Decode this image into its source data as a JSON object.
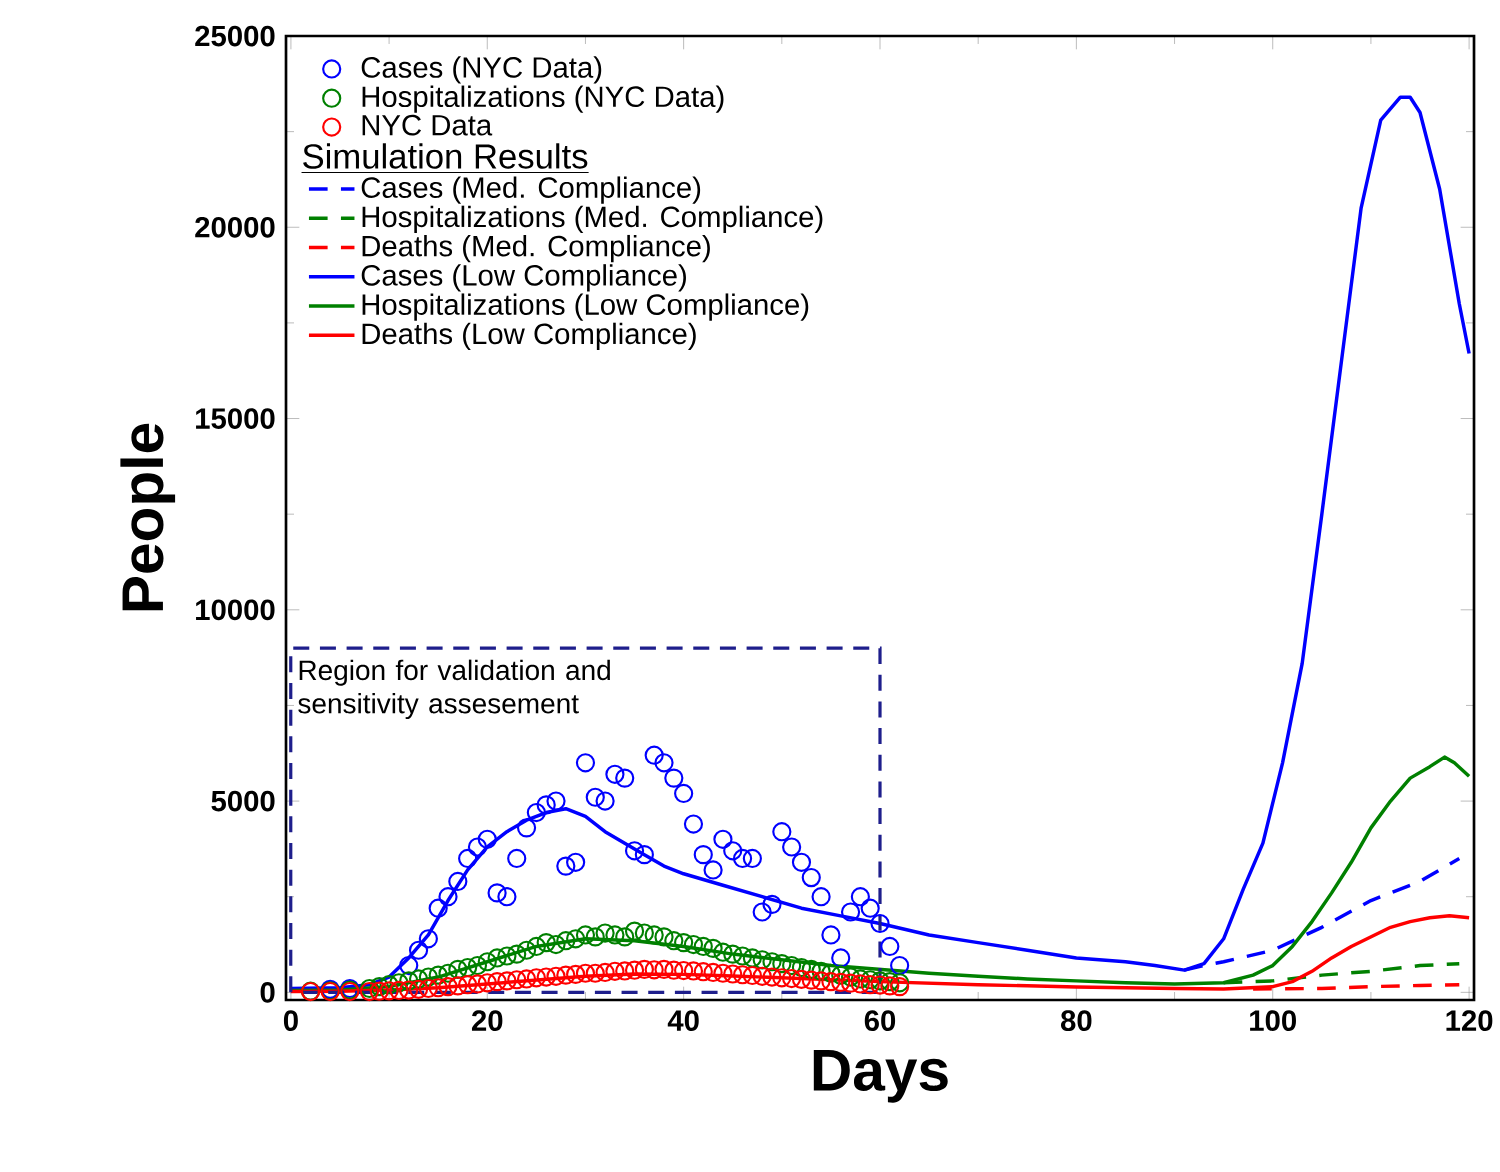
{
  "chart_data": {
    "type": "line",
    "xlabel": "Days",
    "ylabel": "People",
    "legend_title": "Simulation Results",
    "xlim": [
      -0.5,
      120.5
    ],
    "ylim": [
      -200,
      25000
    ],
    "xticks": [
      0,
      20,
      40,
      60,
      80,
      100,
      120
    ],
    "yticks": [
      0,
      5000,
      10000,
      15000,
      20000,
      25000
    ],
    "legend": "top left",
    "grid": false,
    "annotations": [
      "Region for validation and sensitivity assesement"
    ],
    "series": [
      {
        "name": "Cases (NYC Data)",
        "type": "scatter",
        "marker": "circle",
        "color": "#0000ff",
        "x": [
          4,
          6,
          12,
          13,
          14,
          15,
          16,
          17,
          18,
          19,
          20,
          21,
          22,
          23,
          24,
          25,
          26,
          27,
          28,
          29,
          30,
          31,
          32,
          33,
          34,
          35,
          36,
          37,
          38,
          39,
          40,
          41,
          42,
          43,
          44,
          45,
          46,
          47,
          48,
          49,
          50,
          51,
          52,
          53,
          54,
          55,
          56,
          57,
          58,
          59,
          60,
          61,
          62
        ],
        "values": [
          80,
          100,
          700,
          1100,
          1400,
          2200,
          2500,
          2900,
          3500,
          3800,
          4000,
          2600,
          2500,
          3500,
          4300,
          4700,
          4900,
          5000,
          3300,
          3400,
          6000,
          5100,
          5000,
          5700,
          5600,
          3700,
          3600,
          6200,
          6000,
          5600,
          5200,
          4400,
          3600,
          3200,
          4000,
          3700,
          3500,
          3500,
          2100,
          2300,
          4200,
          3800,
          3400,
          3000,
          2500,
          1500,
          900,
          2100,
          2500,
          2200,
          1800,
          1200,
          700
        ]
      },
      {
        "name": "Hospitalizations (NYC Data)",
        "type": "scatter",
        "marker": "circle",
        "color": "#008000",
        "x": [
          2,
          4,
          6,
          8,
          9,
          10,
          11,
          12,
          13,
          14,
          15,
          16,
          17,
          18,
          19,
          20,
          21,
          22,
          23,
          24,
          25,
          26,
          27,
          28,
          29,
          30,
          31,
          32,
          33,
          34,
          35,
          36,
          37,
          38,
          39,
          40,
          41,
          42,
          43,
          44,
          45,
          46,
          47,
          48,
          49,
          50,
          51,
          52,
          53,
          54,
          55,
          56,
          57,
          58,
          59,
          60,
          61,
          62
        ],
        "values": [
          30,
          40,
          60,
          100,
          150,
          200,
          250,
          300,
          350,
          400,
          450,
          500,
          600,
          650,
          700,
          800,
          900,
          950,
          1000,
          1100,
          1200,
          1300,
          1250,
          1350,
          1400,
          1500,
          1450,
          1550,
          1500,
          1450,
          1600,
          1550,
          1500,
          1450,
          1350,
          1300,
          1250,
          1200,
          1150,
          1050,
          1000,
          950,
          900,
          850,
          800,
          750,
          700,
          650,
          600,
          550,
          500,
          450,
          400,
          350,
          330,
          300,
          280,
          250
        ]
      },
      {
        "name": "NYC Data",
        "type": "scatter",
        "marker": "circle",
        "color": "#ff0000",
        "x": [
          2,
          4,
          6,
          8,
          9,
          10,
          11,
          12,
          13,
          14,
          15,
          16,
          17,
          18,
          19,
          20,
          21,
          22,
          23,
          24,
          25,
          26,
          27,
          28,
          29,
          30,
          31,
          32,
          33,
          34,
          35,
          36,
          37,
          38,
          39,
          40,
          41,
          42,
          43,
          44,
          45,
          46,
          47,
          48,
          49,
          50,
          51,
          52,
          53,
          54,
          55,
          56,
          57,
          58,
          59,
          60,
          61,
          62
        ],
        "values": [
          20,
          20,
          20,
          20,
          30,
          40,
          50,
          60,
          80,
          100,
          120,
          150,
          170,
          200,
          220,
          250,
          280,
          300,
          330,
          350,
          380,
          400,
          420,
          450,
          470,
          500,
          500,
          520,
          550,
          560,
          580,
          600,
          590,
          600,
          580,
          570,
          560,
          540,
          520,
          500,
          480,
          460,
          440,
          420,
          400,
          380,
          360,
          340,
          320,
          300,
          280,
          260,
          240,
          220,
          200,
          190,
          170,
          150
        ]
      },
      {
        "name": "Cases (Med. Compliance)",
        "line_style": "dashed",
        "color": "#0000ff",
        "x": [
          91,
          93,
          95,
          100,
          105,
          110,
          115,
          119
        ],
        "values": [
          580,
          700,
          800,
          1100,
          1700,
          2400,
          2900,
          3500
        ]
      },
      {
        "name": "Hospitalizations (Med. Compliance)",
        "line_style": "dashed",
        "color": "#008000",
        "x": [
          95,
          100,
          105,
          110,
          115,
          119
        ],
        "values": [
          250,
          300,
          450,
          550,
          700,
          750
        ]
      },
      {
        "name": "Deaths (Med. Compliance)",
        "line_style": "dashed",
        "color": "#ff0000",
        "x": [
          98,
          105,
          110,
          115,
          119
        ],
        "values": [
          90,
          100,
          150,
          180,
          200
        ]
      },
      {
        "name": "Cases (Low Compliance)",
        "line_style": "solid",
        "color": "#0000ff",
        "x": [
          0,
          5,
          8,
          10,
          12,
          14,
          16,
          18,
          20,
          22,
          24,
          26,
          28,
          30,
          32,
          34,
          36,
          38,
          40,
          44,
          48,
          52,
          56,
          60,
          65,
          70,
          75,
          80,
          85,
          88,
          91,
          93,
          95,
          97,
          99,
          101,
          103,
          105,
          107,
          109,
          111,
          113,
          114,
          115,
          117,
          119,
          120
        ],
        "values": [
          100,
          120,
          200,
          400,
          900,
          1500,
          2400,
          3200,
          3800,
          4200,
          4500,
          4700,
          4800,
          4600,
          4200,
          3900,
          3600,
          3300,
          3100,
          2800,
          2500,
          2200,
          2000,
          1800,
          1500,
          1300,
          1100,
          900,
          800,
          700,
          580,
          750,
          1400,
          2700,
          3900,
          6000,
          8600,
          12500,
          16500,
          20500,
          22800,
          23400,
          23400,
          23000,
          21000,
          18000,
          16700
        ]
      },
      {
        "name": "Hospitalizations (Low Compliance)",
        "line_style": "solid",
        "color": "#008000",
        "x": [
          0,
          5,
          10,
          15,
          20,
          25,
          30,
          35,
          40,
          45,
          50,
          55,
          60,
          65,
          70,
          75,
          80,
          85,
          90,
          95,
          98,
          100,
          102,
          104,
          106,
          108,
          110,
          112,
          114,
          116,
          117.5,
          118.5,
          120
        ],
        "values": [
          50,
          60,
          150,
          400,
          800,
          1200,
          1400,
          1350,
          1200,
          1000,
          850,
          700,
          600,
          500,
          420,
          350,
          300,
          250,
          220,
          250,
          450,
          700,
          1200,
          1850,
          2600,
          3400,
          4300,
          5000,
          5600,
          5900,
          6150,
          6000,
          5650
        ]
      },
      {
        "name": "Deaths (Low Compliance)",
        "line_style": "solid",
        "color": "#ff0000",
        "x": [
          0,
          5,
          10,
          15,
          20,
          25,
          30,
          35,
          40,
          45,
          50,
          55,
          60,
          65,
          70,
          75,
          80,
          85,
          90,
          95,
          100,
          102,
          104,
          106,
          108,
          110,
          112,
          114,
          116,
          118,
          120
        ],
        "values": [
          20,
          30,
          60,
          120,
          220,
          320,
          420,
          480,
          470,
          430,
          380,
          330,
          280,
          240,
          200,
          170,
          140,
          120,
          100,
          90,
          150,
          280,
          550,
          900,
          1200,
          1450,
          1700,
          1850,
          1950,
          2000,
          1950
        ]
      }
    ]
  }
}
